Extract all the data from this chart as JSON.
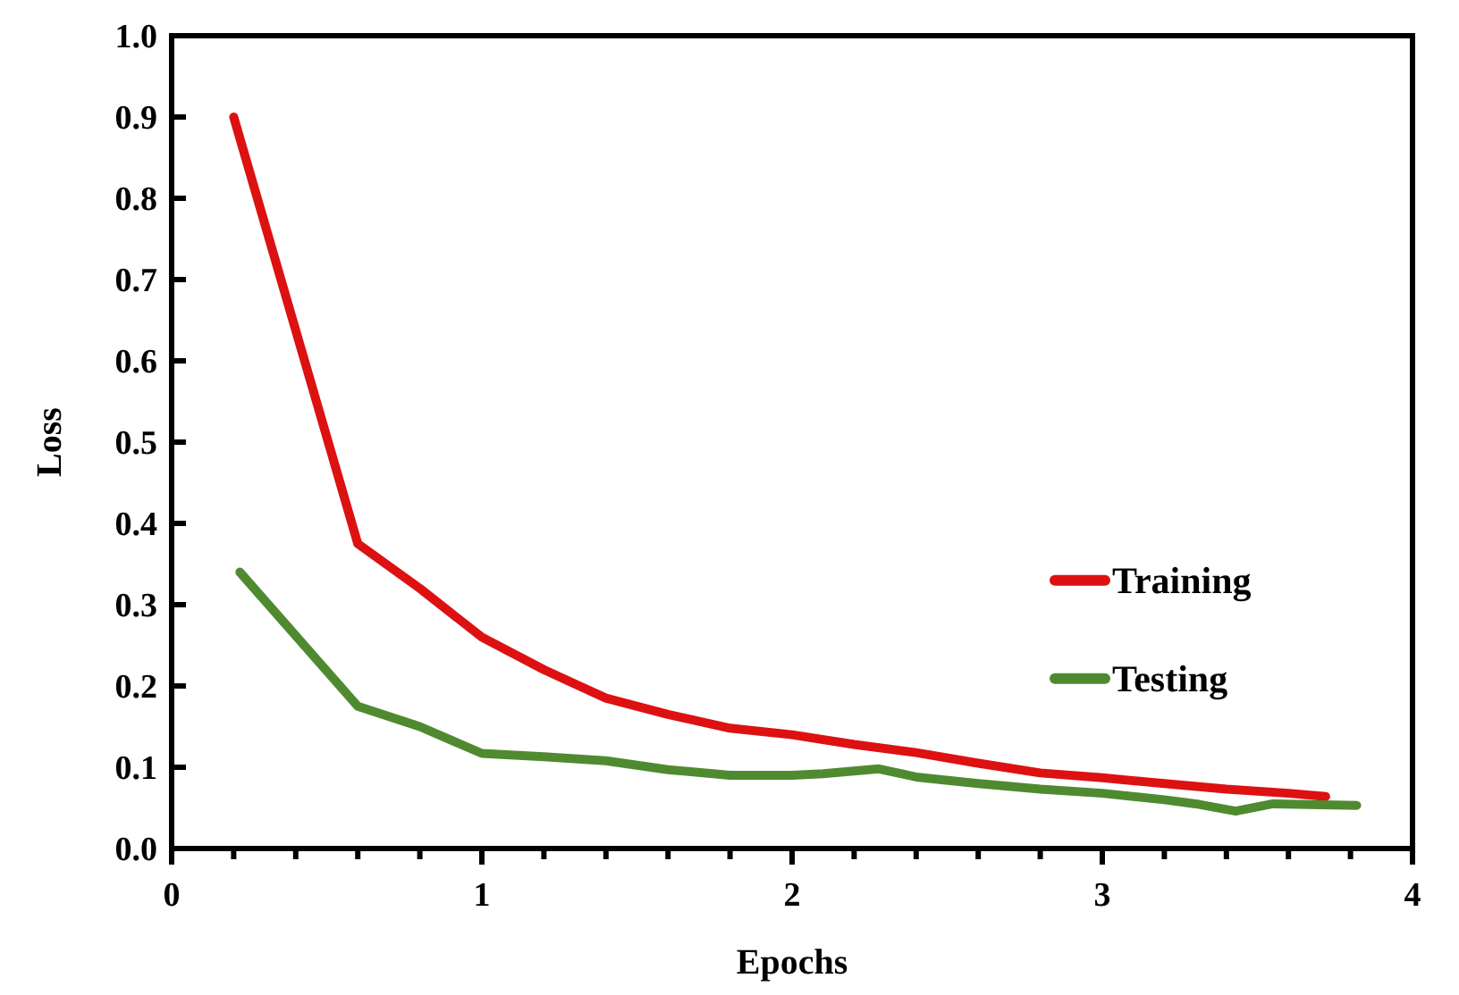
{
  "chart_data": {
    "type": "line",
    "xlabel": "Epochs",
    "ylabel": "Loss",
    "xlim": [
      0,
      4
    ],
    "xticks": [
      0,
      1,
      2,
      3,
      4
    ],
    "ylim": [
      0,
      1
    ],
    "yticks": [
      {
        "value": 0,
        "label": "0.0"
      },
      0.1,
      0.2,
      0.3,
      0.4,
      0.5,
      0.6,
      0.7,
      0.8,
      0.9,
      {
        "value": 1,
        "label": "1.0"
      }
    ],
    "legend": "right",
    "grid": false,
    "marker": "none",
    "line_style": "solid",
    "series": [
      {
        "name": "Training",
        "color": "#dd1111",
        "x": [
          0.2,
          0.6,
          0.8,
          1.0,
          1.2,
          1.4,
          1.6,
          1.8,
          2.0,
          2.2,
          2.4,
          2.6,
          2.8,
          3.0,
          3.2,
          3.4,
          3.6,
          3.72
        ],
        "values": [
          0.9,
          0.375,
          0.32,
          0.26,
          0.22,
          0.185,
          0.165,
          0.148,
          0.14,
          0.128,
          0.118,
          0.105,
          0.093,
          0.087,
          0.08,
          0.073,
          0.068,
          0.064
        ]
      },
      {
        "name": "Testing",
        "color": "#4f8a30",
        "x": [
          0.22,
          0.6,
          0.8,
          1.0,
          1.2,
          1.4,
          1.6,
          1.8,
          2.0,
          2.1,
          2.28,
          2.4,
          2.6,
          2.8,
          3.0,
          3.2,
          3.3,
          3.43,
          3.55,
          3.82
        ],
        "values": [
          0.34,
          0.175,
          0.15,
          0.117,
          0.113,
          0.108,
          0.097,
          0.09,
          0.09,
          0.092,
          0.098,
          0.088,
          0.08,
          0.073,
          0.068,
          0.06,
          0.055,
          0.046,
          0.055,
          0.053
        ]
      }
    ]
  }
}
